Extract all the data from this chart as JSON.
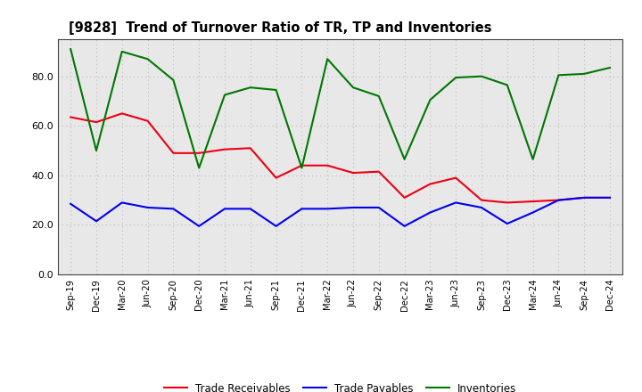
{
  "title": "[9828]  Trend of Turnover Ratio of TR, TP and Inventories",
  "x_labels": [
    "Sep-19",
    "Dec-19",
    "Mar-20",
    "Jun-20",
    "Sep-20",
    "Dec-20",
    "Mar-21",
    "Jun-21",
    "Sep-21",
    "Dec-21",
    "Mar-22",
    "Jun-22",
    "Sep-22",
    "Dec-22",
    "Mar-23",
    "Jun-23",
    "Sep-23",
    "Dec-23",
    "Mar-24",
    "Jun-24",
    "Sep-24",
    "Dec-24"
  ],
  "trade_receivables": [
    63.5,
    61.5,
    65.0,
    62.0,
    49.0,
    49.0,
    50.5,
    51.0,
    39.0,
    44.0,
    44.0,
    41.0,
    41.5,
    31.0,
    36.5,
    39.0,
    30.0,
    29.0,
    29.5,
    30.0,
    31.0,
    31.0
  ],
  "trade_payables": [
    28.5,
    21.5,
    29.0,
    27.0,
    26.5,
    19.5,
    26.5,
    26.5,
    19.5,
    26.5,
    26.5,
    27.0,
    27.0,
    19.5,
    25.0,
    29.0,
    27.0,
    20.5,
    25.0,
    30.0,
    31.0,
    31.0
  ],
  "inventories": [
    91.0,
    50.0,
    90.0,
    87.0,
    78.5,
    43.0,
    72.5,
    75.5,
    74.5,
    43.0,
    87.0,
    75.5,
    72.0,
    46.5,
    70.5,
    79.5,
    80.0,
    76.5,
    46.5,
    80.5,
    81.0,
    83.5
  ],
  "color_tr": "#ee0011",
  "color_tp": "#0000ee",
  "color_inv": "#007700",
  "ylim": [
    0,
    95
  ],
  "yticks": [
    0.0,
    20.0,
    40.0,
    60.0,
    80.0
  ],
  "background_color": "#ffffff",
  "plot_bg_color": "#e8e8e8",
  "grid_color": "#bbbbbb",
  "legend_labels": [
    "Trade Receivables",
    "Trade Payables",
    "Inventories"
  ]
}
